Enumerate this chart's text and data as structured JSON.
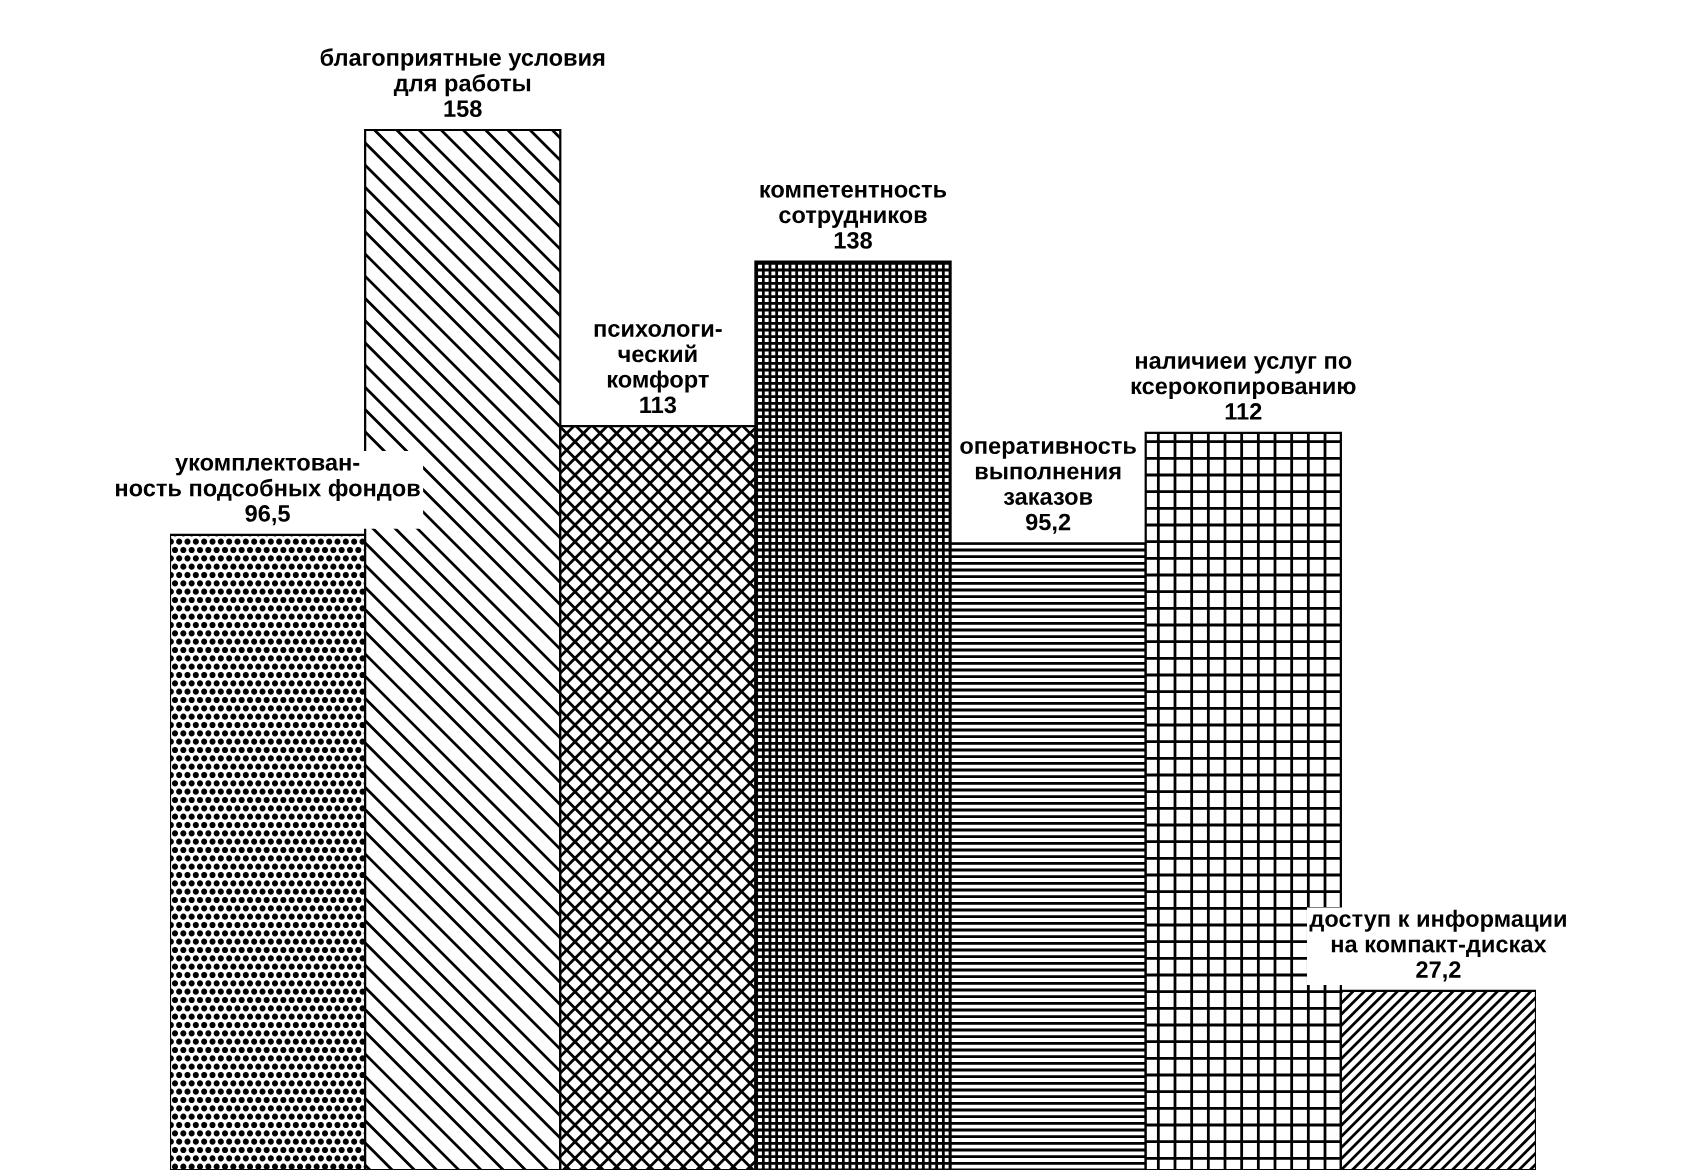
{
  "chart_data": {
    "type": "bar",
    "categories": [
      "укомплектован-\nность подсобных фондов",
      "благоприятные условия\nдля работы",
      "психологи-\nческий\nкомфорт",
      "компетентность\nсотрудников",
      "оперативность\nвыполнения\nзаказов",
      "наличиеи услуг по\nксерокопированию",
      "доступ к информации\nна компакт-дисках"
    ],
    "values": [
      96.5,
      158,
      113,
      138,
      95.2,
      112,
      27.2
    ],
    "value_labels": [
      "96,5",
      "158",
      "113",
      "138",
      "95,2",
      "112",
      "27,2"
    ],
    "colors": [
      "#000000",
      "#000000",
      "#000000",
      "#000000",
      "#000000",
      "#000000",
      "#000000"
    ]
  }
}
